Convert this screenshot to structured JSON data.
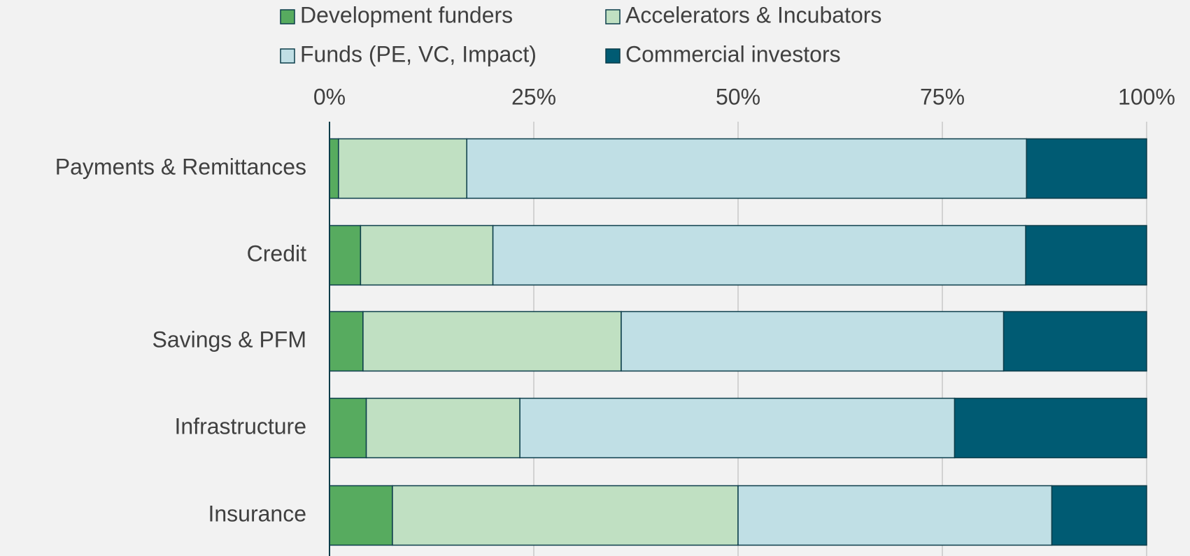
{
  "chart_data": {
    "type": "stacked_barh",
    "categories": [
      "Payments & Remittances",
      "Credit",
      "Savings & PFM",
      "Infrastructure",
      "Insurance"
    ],
    "series": [
      {
        "name": "Development funders",
        "color": "#57ab5f",
        "values": [
          1.1,
          3.8,
          4.1,
          4.5,
          7.7
        ]
      },
      {
        "name": "Accelerators & Incubators",
        "color": "#c0e0c2",
        "values": [
          15.7,
          16.2,
          31.6,
          18.8,
          42.3
        ]
      },
      {
        "name": "Funds (PE, VC, Impact)",
        "color": "#c0dfe5",
        "values": [
          68.5,
          65.2,
          46.8,
          53.2,
          38.4
        ]
      },
      {
        "name": "Commercial investors",
        "color": "#005b73",
        "values": [
          14.7,
          14.8,
          17.5,
          23.5,
          11.6
        ]
      }
    ],
    "xlim": [
      0,
      100
    ],
    "xticks": [
      {
        "value": 0,
        "label": "0%"
      },
      {
        "value": 25,
        "label": "25%"
      },
      {
        "value": 50,
        "label": "50%"
      },
      {
        "value": 75,
        "label": "75%"
      },
      {
        "value": 100,
        "label": "100%"
      }
    ],
    "grid": true,
    "legend": "top"
  }
}
